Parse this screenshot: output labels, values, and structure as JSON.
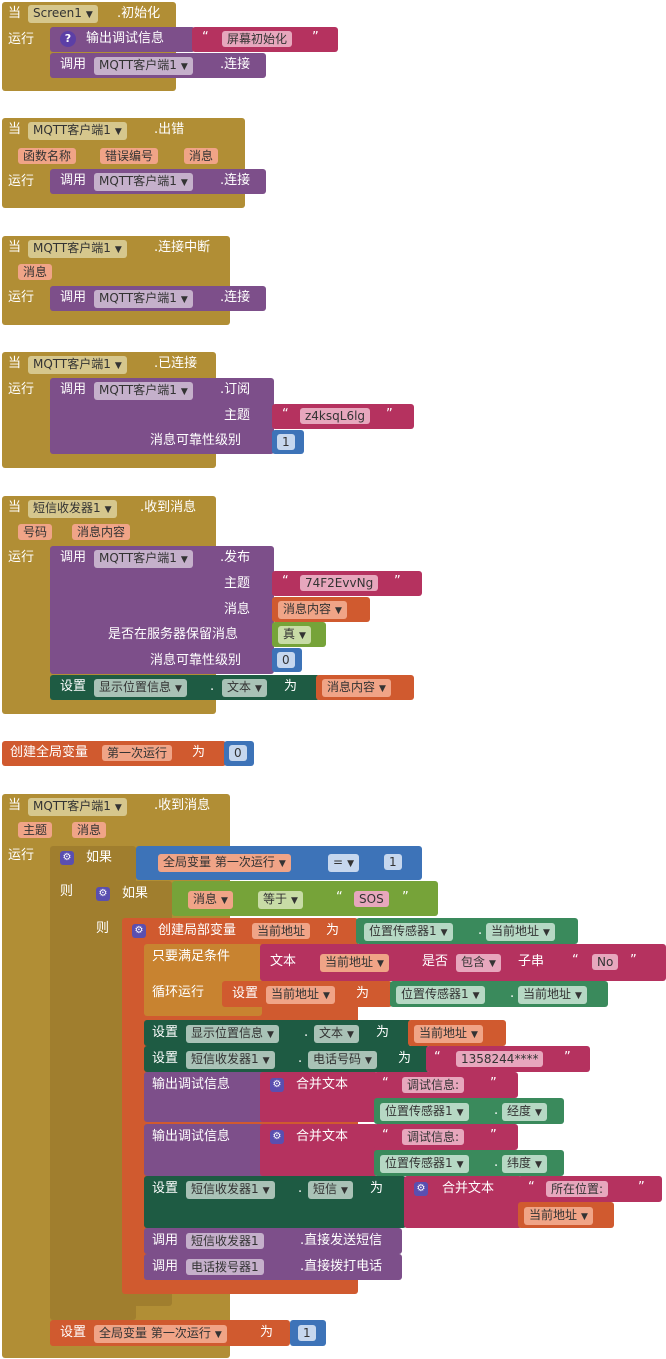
{
  "b1": {
    "when": "当",
    "component": "Screen1",
    "event": ".初始化",
    "do": "运行",
    "debug": "输出调试信息",
    "text": "屏幕初始化",
    "call": "调用",
    "client": "MQTT客户端1",
    "method": ".连接"
  },
  "b2": {
    "when": "当",
    "component": "MQTT客户端1",
    "event": ".出错",
    "params": [
      "函数名称",
      "错误编号",
      "消息"
    ],
    "do": "运行",
    "call": "调用",
    "client": "MQTT客户端1",
    "method": ".连接"
  },
  "b3": {
    "when": "当",
    "component": "MQTT客户端1",
    "event": ".连接中断",
    "params": [
      "消息"
    ],
    "do": "运行",
    "call": "调用",
    "client": "MQTT客户端1",
    "method": ".连接"
  },
  "b4": {
    "when": "当",
    "component": "MQTT客户端1",
    "event": ".已连接",
    "do": "运行",
    "call": "调用",
    "client": "MQTT客户端1",
    "method": ".订阅",
    "topic_label": "主题",
    "topic": "z4ksqL6lg",
    "qos_label": "消息可靠性级别",
    "qos": "1"
  },
  "b5": {
    "when": "当",
    "component": "短信收发器1",
    "event": ".收到消息",
    "params": [
      "号码",
      "消息内容"
    ],
    "do": "运行",
    "call": "调用",
    "client": "MQTT客户端1",
    "method": ".发布",
    "topic_label": "主题",
    "topic": "74F2EvvNg",
    "msg_label": "消息",
    "msg": "消息内容",
    "retain_label": "是否在服务器保留消息",
    "retain": "真",
    "qos_label": "消息可靠性级别",
    "qos": "0",
    "set": "设置",
    "set_comp": "显示位置信息",
    "set_prop": "文本",
    "to": "为",
    "set_val": "消息内容"
  },
  "b6": {
    "label": "创建全局变量",
    "name": "第一次运行",
    "to": "为",
    "value": "0"
  },
  "b7": {
    "when": "当",
    "component": "MQTT客户端1",
    "event": ".收到消息",
    "params": [
      "主题",
      "消息"
    ],
    "do": "运行",
    "if": "如果",
    "then": "则",
    "if1_var": "全局变量 第一次运行",
    "if1_op": "=",
    "if1_val": "1",
    "if2_var": "消息",
    "if2_op": "等于",
    "if2_val": "SOS",
    "local_label": "创建局部变量",
    "local_name": "当前地址",
    "to": "为",
    "loc_comp": "位置传感器1",
    "loc_prop": "当前地址",
    "while_label": "只要满足条件",
    "text_label": "文本",
    "while_var": "当前地址",
    "is_label": "是否",
    "contains": "包含",
    "substr": "子串",
    "no_text": "No",
    "loop_label": "循环运行",
    "set": "设置",
    "loop_set_var": "当前地址",
    "loop_comp": "位置传感器1",
    "loop_prop": "当前地址",
    "s1_comp": "显示位置信息",
    "s1_prop": "文本",
    "s1_val": "当前地址",
    "s2_comp": "短信收发器1",
    "s2_prop": "电话号码",
    "s2_val": "1358244****",
    "debug": "输出调试信息",
    "join": "合并文本",
    "d1_text": "调试信息:",
    "d1_comp": "位置传感器1",
    "d1_prop": "经度",
    "d2_text": "调试信息:",
    "d2_comp": "位置传感器1",
    "d2_prop": "纬度",
    "s3_comp": "短信收发器1",
    "s3_prop": "短信",
    "s3_text": "所在位置:",
    "s3_var": "当前地址",
    "call": "调用",
    "c1_comp": "短信收发器1",
    "c1_method": ".直接发送短信",
    "c2_comp": "电话拨号器1",
    "c2_method": ".直接拨打电话",
    "final_set_var": "全局变量 第一次运行",
    "final_val": "1"
  }
}
